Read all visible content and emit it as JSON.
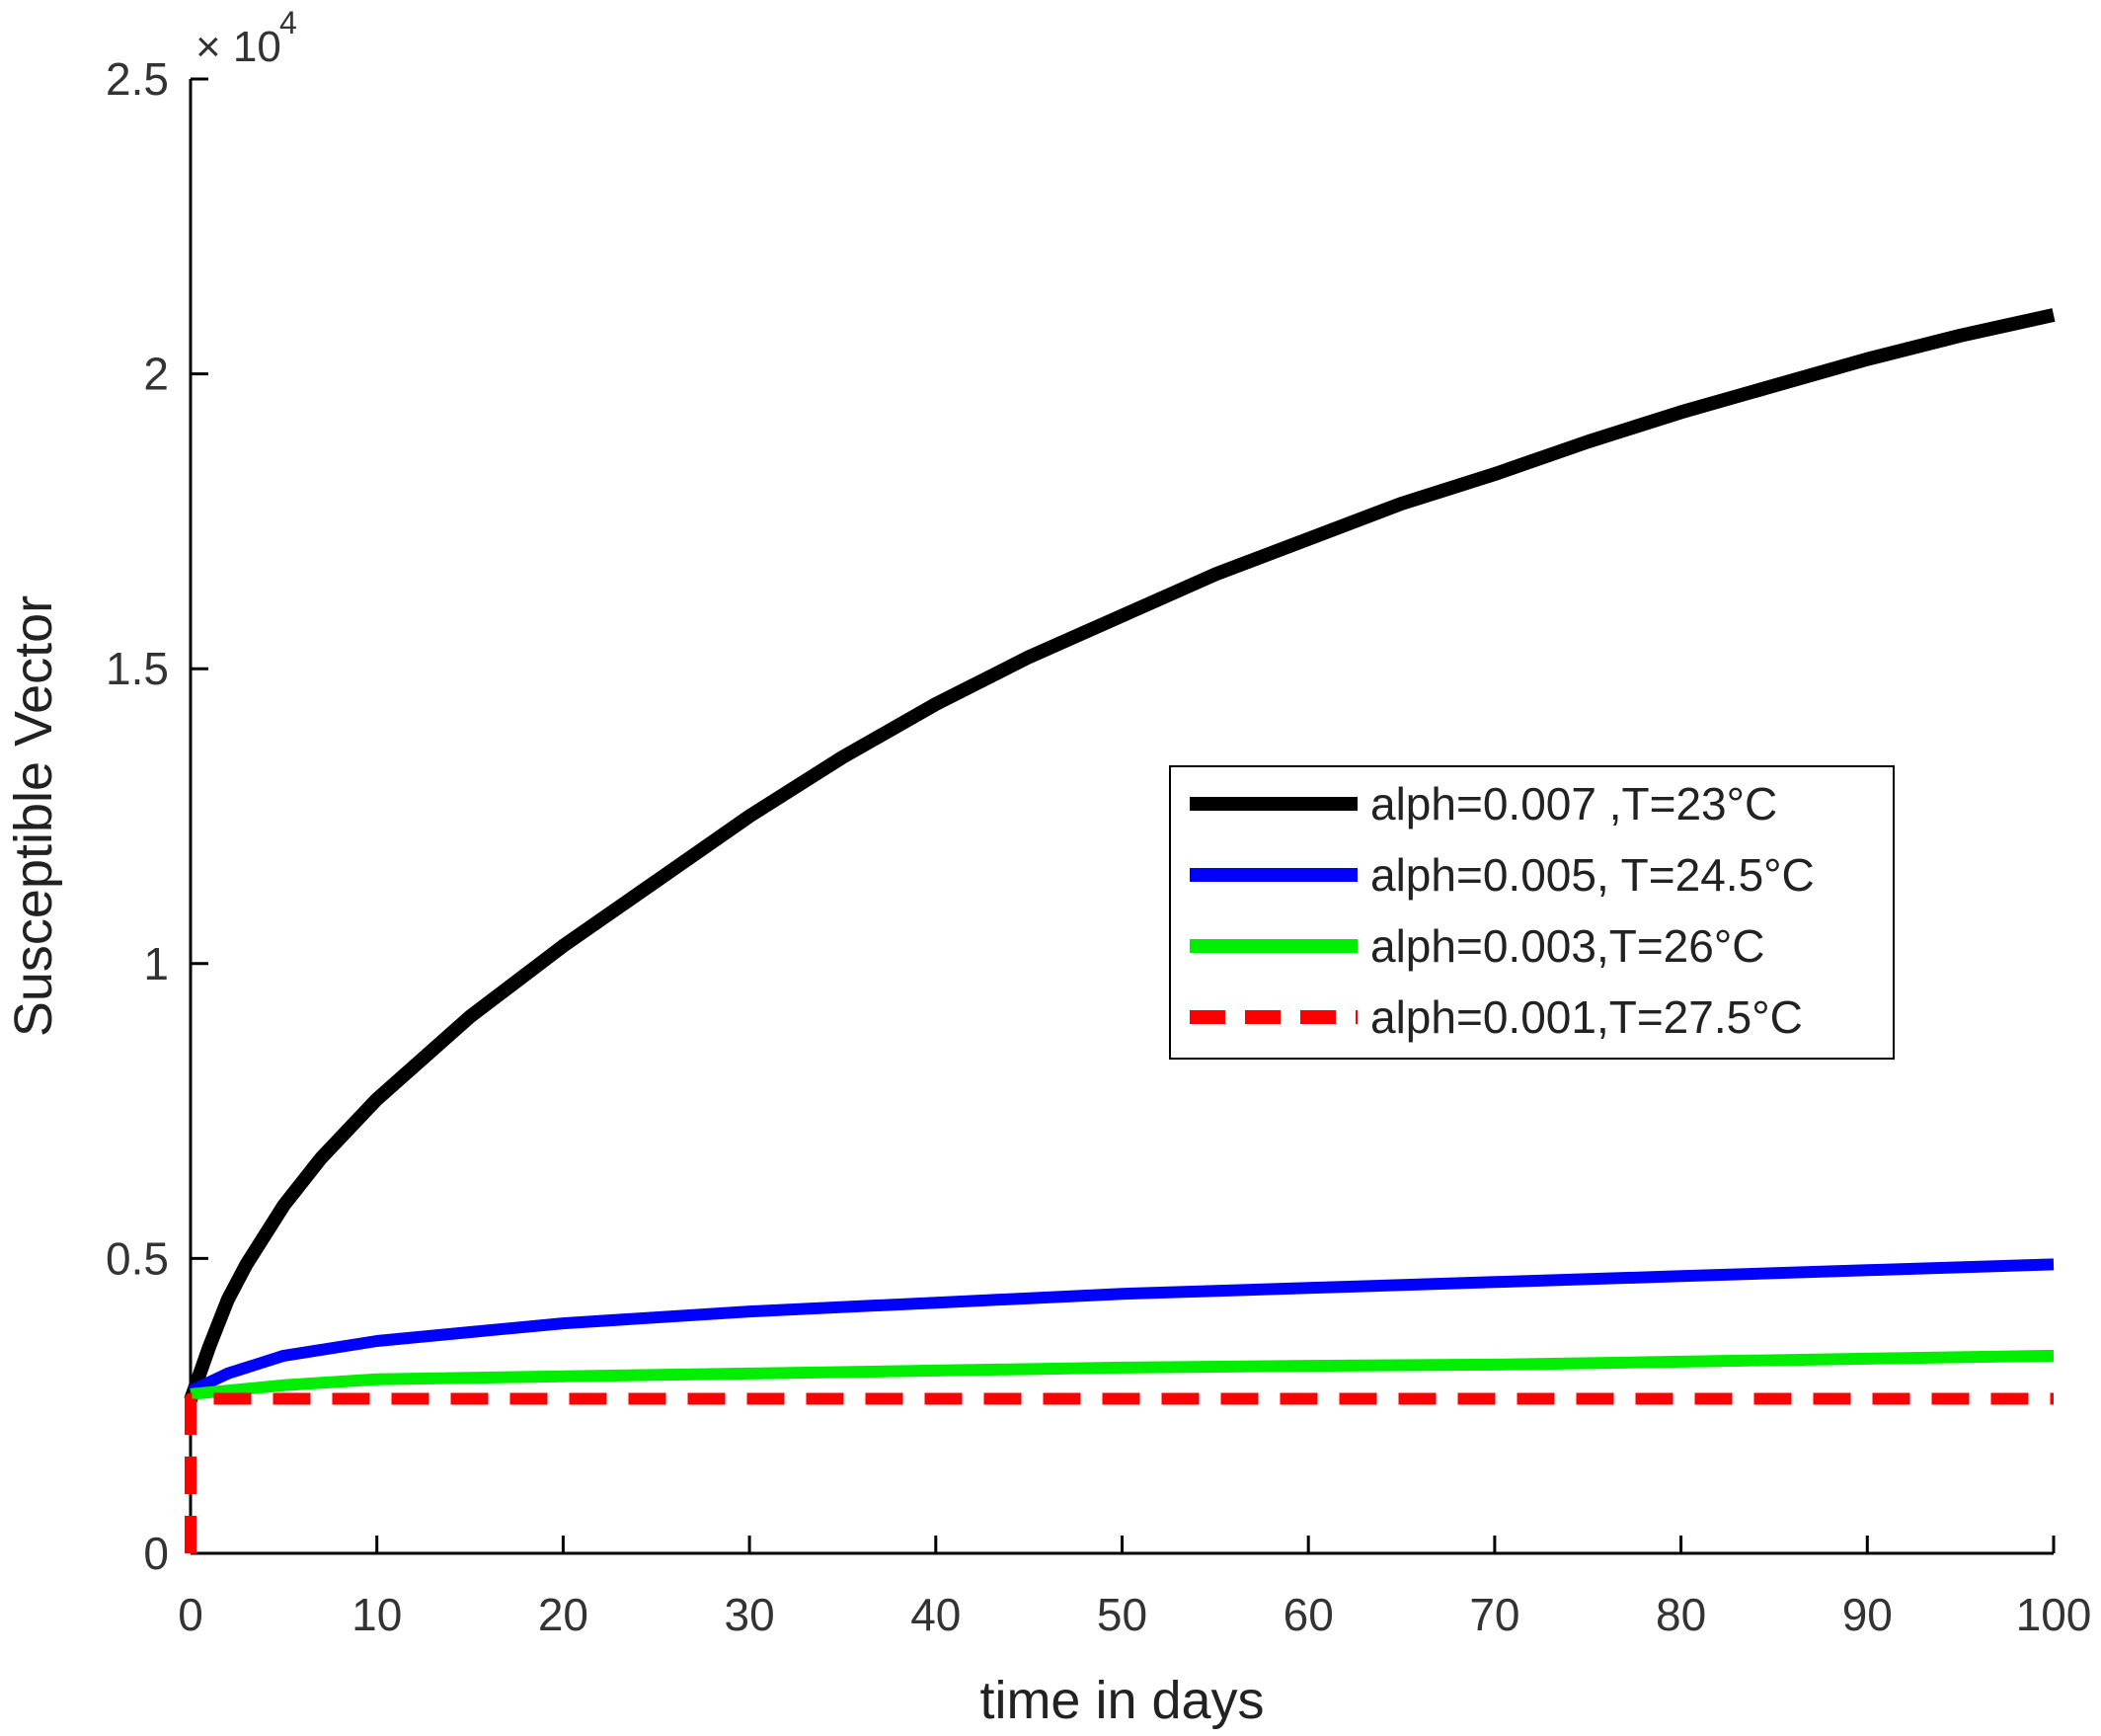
{
  "chart_data": {
    "type": "line",
    "title": "",
    "xlabel": "time in days",
    "ylabel": "Susceptible Vector",
    "xlim": [
      0,
      100
    ],
    "ylim": [
      0,
      25000
    ],
    "y_multiplier_label": {
      "base": "× 10",
      "exponent": "4"
    },
    "x_ticks": [
      0,
      10,
      20,
      30,
      40,
      50,
      60,
      70,
      80,
      90,
      100
    ],
    "x_tick_labels": [
      "0",
      "10",
      "20",
      "30",
      "40",
      "50",
      "60",
      "70",
      "80",
      "90",
      "100"
    ],
    "y_ticks": [
      0,
      5000,
      10000,
      15000,
      20000,
      25000
    ],
    "y_tick_labels": [
      "0",
      "0.5",
      "1",
      "1.5",
      "2",
      "2.5"
    ],
    "grid": false,
    "legend_position": "center-right",
    "series": [
      {
        "name": "alph=0.007 ,T=23°C",
        "color": "#000000",
        "style": "solid",
        "x": [
          0,
          1,
          2,
          3,
          5,
          7,
          10,
          15,
          20,
          25,
          30,
          35,
          40,
          45,
          50,
          55,
          60,
          65,
          70,
          75,
          80,
          85,
          90,
          95,
          100
        ],
        "y": [
          2600,
          3500,
          4300,
          4900,
          5900,
          6700,
          7700,
          9100,
          10300,
          11400,
          12500,
          13500,
          14400,
          15200,
          15900,
          16600,
          17200,
          17800,
          18300,
          18850,
          19350,
          19800,
          20250,
          20650,
          21000
        ]
      },
      {
        "name": "alph=0.005, T=24.5°C",
        "color": "#0000ff",
        "style": "solid",
        "x": [
          0,
          2,
          5,
          10,
          15,
          20,
          30,
          40,
          50,
          60,
          70,
          80,
          90,
          100
        ],
        "y": [
          2750,
          3050,
          3350,
          3600,
          3750,
          3900,
          4100,
          4250,
          4400,
          4500,
          4600,
          4700,
          4800,
          4900
        ]
      },
      {
        "name": "alph=0.003,T=26°C",
        "color": "#00ee00",
        "style": "solid",
        "x": [
          0,
          5,
          10,
          20,
          30,
          40,
          50,
          60,
          70,
          80,
          90,
          100
        ],
        "y": [
          2700,
          2850,
          2950,
          3000,
          3050,
          3100,
          3150,
          3180,
          3200,
          3250,
          3300,
          3350
        ]
      },
      {
        "name": "alph=0.001,T=27.5°C",
        "color": "#ff0000",
        "style": "dashed",
        "x": [
          0,
          0,
          1,
          100
        ],
        "y": [
          0,
          2620,
          2620,
          2620
        ]
      }
    ]
  }
}
